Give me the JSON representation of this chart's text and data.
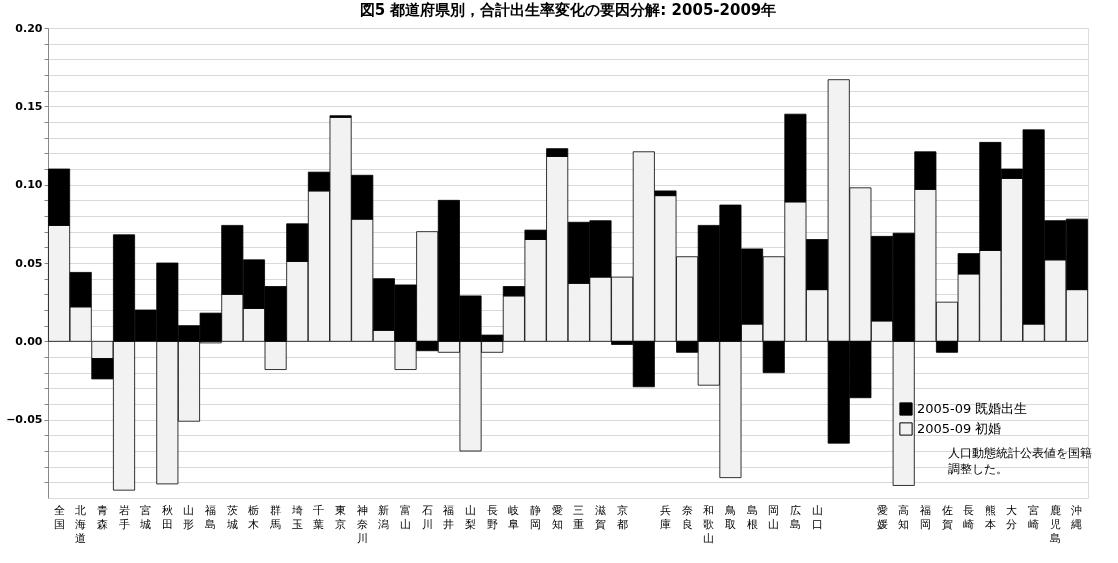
{
  "chart_data": {
    "type": "bar",
    "stacked": true,
    "title": "図5 都道府県別，合計出生率変化の要因分解: 2005-2009年",
    "categories": [
      "全国",
      "北海道",
      "青森",
      "岩手",
      "宮城",
      "秋田",
      "山形",
      "福島",
      "茨城",
      "栃木",
      "群馬",
      "埼玉",
      "千葉",
      "東京",
      "神奈川",
      "新潟",
      "富山",
      "石川",
      "福井",
      "山梨",
      "長野",
      "岐阜",
      "静岡",
      "愛知",
      "三重",
      "滋賀",
      "京都",
      null,
      "兵庫",
      "奈良",
      "和歌山",
      "鳥取",
      "島根",
      "岡山",
      "広島",
      "山口",
      null,
      null,
      "愛媛",
      "高知",
      "福岡",
      "佐賀",
      "長崎",
      "熊本",
      "大分",
      "宮崎",
      "鹿児島",
      "沖縄"
    ],
    "series": [
      {
        "name": "2005-09 初婚",
        "color": "#f2f2f2",
        "values": [
          0.074,
          0.022,
          -0.011,
          -0.095,
          null,
          -0.091,
          -0.051,
          -0.001,
          0.03,
          0.021,
          -0.018,
          0.051,
          0.096,
          0.143,
          0.078,
          0.007,
          -0.018,
          0.07,
          -0.007,
          -0.07,
          -0.007,
          0.029,
          0.065,
          0.118,
          0.037,
          0.041,
          0.041,
          0.121,
          0.093,
          0.054,
          -0.028,
          -0.087,
          0.011,
          0.054,
          0.089,
          0.033,
          0.167,
          0.098,
          0.013,
          -0.092,
          0.097,
          0.025,
          0.043,
          0.058,
          0.104,
          0.011,
          0.052,
          0.033
        ]
      },
      {
        "name": "2005-09 既婚出生",
        "color": "#000000",
        "values": [
          0.036,
          0.022,
          -0.013,
          0.068,
          0.02,
          0.05,
          0.01,
          0.018,
          0.044,
          0.031,
          0.035,
          0.024,
          0.012,
          0.001,
          0.028,
          0.033,
          0.036,
          -0.006,
          0.09,
          0.029,
          0.004,
          0.006,
          0.006,
          0.005,
          0.039,
          0.036,
          -0.002,
          -0.029,
          0.003,
          -0.007,
          0.074,
          0.087,
          0.048,
          -0.02,
          0.056,
          0.032,
          -0.065,
          -0.036,
          0.054,
          0.069,
          0.024,
          -0.007,
          0.013,
          0.069,
          0.006,
          0.124,
          0.025,
          0.045
        ]
      }
    ],
    "ylim": [
      -0.1,
      0.2
    ],
    "yticks": [
      {
        "value": -0.09,
        "label": null
      },
      {
        "value": -0.08,
        "label": null
      },
      {
        "value": -0.07,
        "label": null
      },
      {
        "value": -0.06,
        "label": null
      },
      {
        "value": -0.05,
        "label": "−0.05"
      },
      {
        "value": -0.04,
        "label": null
      },
      {
        "value": -0.03,
        "label": null
      },
      {
        "value": -0.02,
        "label": null
      },
      {
        "value": -0.01,
        "label": null
      },
      {
        "value": 0,
        "label": "0.00"
      },
      {
        "value": 0.01,
        "label": null
      },
      {
        "value": 0.02,
        "label": null
      },
      {
        "value": 0.03,
        "label": null
      },
      {
        "value": 0.04,
        "label": null
      },
      {
        "value": 0.05,
        "label": "0.05"
      },
      {
        "value": 0.06,
        "label": null
      },
      {
        "value": 0.07,
        "label": null
      },
      {
        "value": 0.08,
        "label": null
      },
      {
        "value": 0.09,
        "label": null
      },
      {
        "value": 0.1,
        "label": "0.10"
      },
      {
        "value": 0.11,
        "label": null
      },
      {
        "value": 0.12,
        "label": null
      },
      {
        "value": 0.13,
        "label": null
      },
      {
        "value": 0.14,
        "label": null
      },
      {
        "value": 0.15,
        "label": "0.15"
      },
      {
        "value": 0.16,
        "label": null
      },
      {
        "value": 0.17,
        "label": null
      },
      {
        "value": 0.18,
        "label": null
      },
      {
        "value": 0.19,
        "label": null
      },
      {
        "value": 0.2,
        "label": "0.20"
      }
    ],
    "grid": "y",
    "legend": "bottom right",
    "annotations": [
      "人口動態統計公表値を国籍調整した。"
    ]
  }
}
